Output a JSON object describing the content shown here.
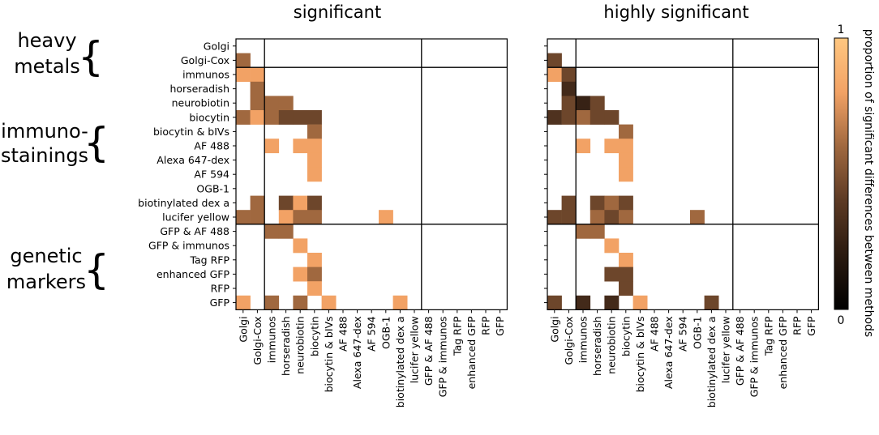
{
  "chart_data": {
    "type": "heatmap",
    "methods": [
      "Golgi",
      "Golgi-Cox",
      "immunos",
      "horseradish",
      "neurobiotin",
      "biocytin",
      "biocytin & bIVs",
      "AF 488",
      "Alexa 647-dex",
      "AF 594",
      "OGB-1",
      "biotinylated dex a",
      "lucifer yellow",
      "GFP & AF 488",
      "GFP & immunos",
      "Tag RFP",
      "enhanced GFP",
      "RFP",
      "GFP"
    ],
    "group_labels": [
      {
        "lines": [
          "heavy",
          "metals"
        ]
      },
      {
        "lines": [
          "immuno-",
          "stainings"
        ]
      },
      {
        "lines": [
          "genetic",
          "markers"
        ]
      }
    ],
    "group_boundaries_after_index": [
      1,
      12
    ],
    "colorbar": {
      "label": "proportion of significant differences between methods",
      "min": 0,
      "max": 1,
      "tick_labels": [
        "0",
        "1"
      ]
    },
    "panels": [
      {
        "title": "significant",
        "cells": [
          [
            1,
            0,
            0.6
          ],
          [
            2,
            0,
            0.8
          ],
          [
            2,
            1,
            0.8
          ],
          [
            3,
            1,
            0.6
          ],
          [
            4,
            1,
            0.6
          ],
          [
            4,
            2,
            0.6
          ],
          [
            4,
            3,
            0.6
          ],
          [
            5,
            0,
            0.6
          ],
          [
            5,
            1,
            0.8
          ],
          [
            5,
            2,
            0.6
          ],
          [
            5,
            3,
            0.45
          ],
          [
            5,
            4,
            0.45
          ],
          [
            5,
            5,
            0.45
          ],
          [
            6,
            5,
            0.6
          ],
          [
            7,
            2,
            0.8
          ],
          [
            7,
            4,
            0.8
          ],
          [
            7,
            5,
            0.8
          ],
          [
            8,
            5,
            0.8
          ],
          [
            9,
            5,
            0.8
          ],
          [
            11,
            1,
            0.6
          ],
          [
            11,
            3,
            0.45
          ],
          [
            11,
            4,
            0.8
          ],
          [
            11,
            5,
            0.45
          ],
          [
            12,
            0,
            0.6
          ],
          [
            12,
            1,
            0.6
          ],
          [
            12,
            3,
            0.8
          ],
          [
            12,
            4,
            0.6
          ],
          [
            12,
            5,
            0.6
          ],
          [
            12,
            10,
            0.8
          ],
          [
            13,
            2,
            0.6
          ],
          [
            13,
            3,
            0.6
          ],
          [
            14,
            4,
            0.8
          ],
          [
            15,
            5,
            0.8
          ],
          [
            16,
            4,
            0.8
          ],
          [
            16,
            5,
            0.6
          ],
          [
            17,
            5,
            0.8
          ],
          [
            18,
            0,
            0.8
          ],
          [
            18,
            2,
            0.6
          ],
          [
            18,
            4,
            0.6
          ],
          [
            18,
            6,
            0.8
          ],
          [
            18,
            11,
            0.8
          ]
        ]
      },
      {
        "title": "highly significant",
        "cells": [
          [
            1,
            0,
            0.45
          ],
          [
            2,
            0,
            0.8
          ],
          [
            2,
            1,
            0.45
          ],
          [
            3,
            1,
            0.3
          ],
          [
            4,
            1,
            0.45
          ],
          [
            4,
            2,
            0.25
          ],
          [
            4,
            3,
            0.45
          ],
          [
            5,
            0,
            0.35
          ],
          [
            5,
            1,
            0.45
          ],
          [
            5,
            2,
            0.6
          ],
          [
            5,
            3,
            0.45
          ],
          [
            5,
            4,
            0.45
          ],
          [
            6,
            5,
            0.6
          ],
          [
            7,
            2,
            0.8
          ],
          [
            7,
            4,
            0.8
          ],
          [
            7,
            5,
            0.8
          ],
          [
            8,
            5,
            0.8
          ],
          [
            9,
            5,
            0.8
          ],
          [
            11,
            1,
            0.45
          ],
          [
            11,
            3,
            0.45
          ],
          [
            11,
            4,
            0.6
          ],
          [
            11,
            5,
            0.45
          ],
          [
            12,
            0,
            0.45
          ],
          [
            12,
            1,
            0.45
          ],
          [
            12,
            3,
            0.6
          ],
          [
            12,
            4,
            0.45
          ],
          [
            12,
            5,
            0.6
          ],
          [
            12,
            10,
            0.6
          ],
          [
            13,
            2,
            0.6
          ],
          [
            13,
            3,
            0.6
          ],
          [
            14,
            4,
            0.8
          ],
          [
            15,
            5,
            0.8
          ],
          [
            16,
            4,
            0.45
          ],
          [
            16,
            5,
            0.45
          ],
          [
            17,
            5,
            0.45
          ],
          [
            18,
            0,
            0.45
          ],
          [
            18,
            2,
            0.3
          ],
          [
            18,
            4,
            0.3
          ],
          [
            18,
            6,
            0.8
          ],
          [
            18,
            11,
            0.45
          ]
        ]
      }
    ]
  }
}
